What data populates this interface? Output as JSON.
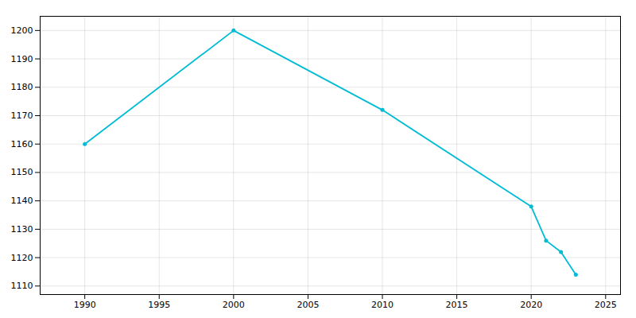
{
  "chart_data": {
    "type": "line",
    "x": [
      1990,
      2000,
      2010,
      2020,
      2021,
      2022,
      2023
    ],
    "values": [
      1160,
      1200,
      1172,
      1138,
      1126,
      1122,
      1114
    ],
    "color": "#00BCD4",
    "marker": "circle",
    "xlim": [
      1987,
      2026
    ],
    "xticks": [
      1990,
      1995,
      2000,
      2005,
      2010,
      2015,
      2020,
      2025
    ],
    "ylim": [
      1107,
      1205
    ],
    "yticks": [
      1110,
      1120,
      1130,
      1140,
      1150,
      1160,
      1170,
      1180,
      1190,
      1200
    ],
    "grid": true
  }
}
